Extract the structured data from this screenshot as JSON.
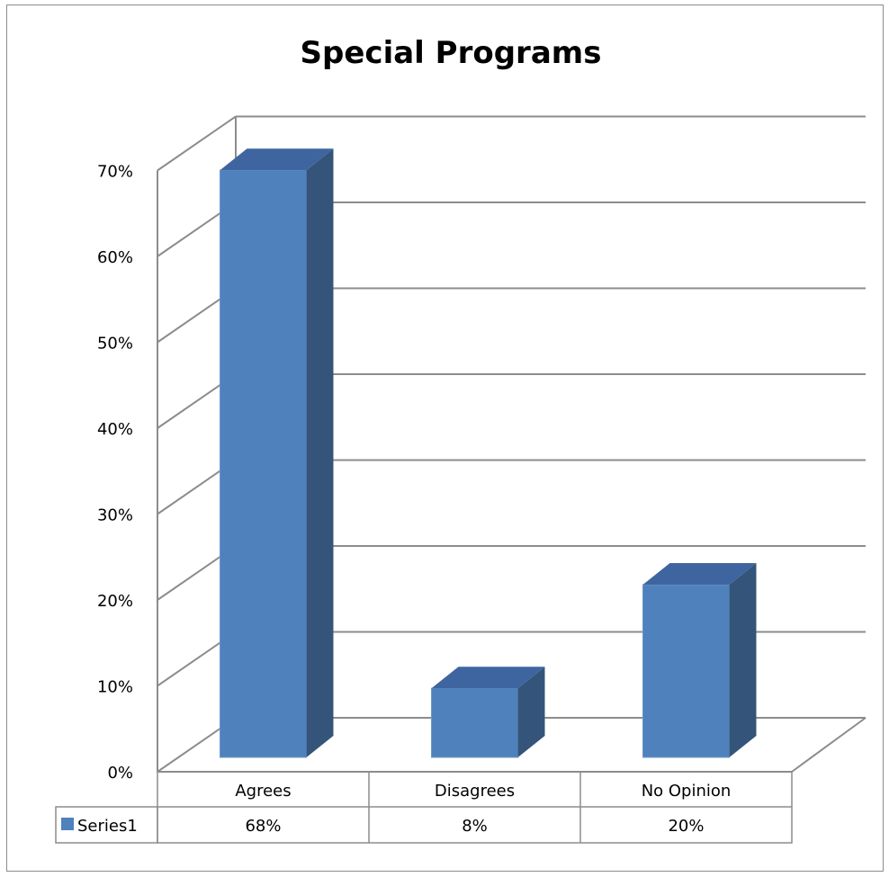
{
  "chart_data": {
    "type": "bar",
    "title": "Special Programs",
    "categories": [
      "Agrees",
      "Disagrees",
      "No Opinion"
    ],
    "series": [
      {
        "name": "Series1",
        "values": [
          68,
          8,
          20
        ],
        "value_labels": [
          "68%",
          "8%",
          "20%"
        ],
        "color": "#4f81bd"
      }
    ],
    "y_ticks": [
      "0%",
      "10%",
      "20%",
      "30%",
      "40%",
      "50%",
      "60%",
      "70%"
    ],
    "ylim": [
      0,
      70
    ],
    "xlabel": "",
    "ylabel": "",
    "grid": true,
    "data_table": true,
    "style": "3d-column"
  }
}
